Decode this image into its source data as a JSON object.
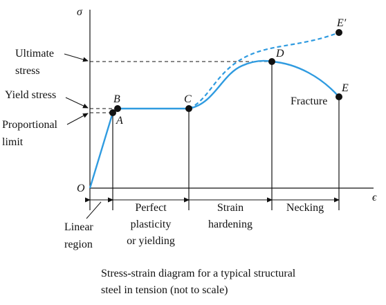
{
  "axes": {
    "y_symbol": "σ",
    "x_symbol": "ϵ",
    "origin": "O"
  },
  "points": {
    "A": "A",
    "B": "B",
    "C": "C",
    "D": "D",
    "E": "E",
    "E_prime": "E′"
  },
  "left_labels": {
    "ultimate_line1": "Ultimate",
    "ultimate_line2": "stress",
    "yield": "Yield stress",
    "proportional_line1": "Proportional",
    "proportional_line2": "limit"
  },
  "fracture": "Fracture",
  "regions": {
    "linear_line1": "Linear",
    "linear_line2": "region",
    "perfect_line1": "Perfect",
    "perfect_line2": "plasticity",
    "perfect_line3": "or yielding",
    "strain_line1": "Strain",
    "strain_line2": "hardening",
    "necking": "Necking"
  },
  "caption": {
    "line1": "Stress-strain diagram for  a typical structural",
    "line2": "steel in tension (not to scale)"
  },
  "colors": {
    "curve": "#2f9be0",
    "axes": "#111111"
  }
}
